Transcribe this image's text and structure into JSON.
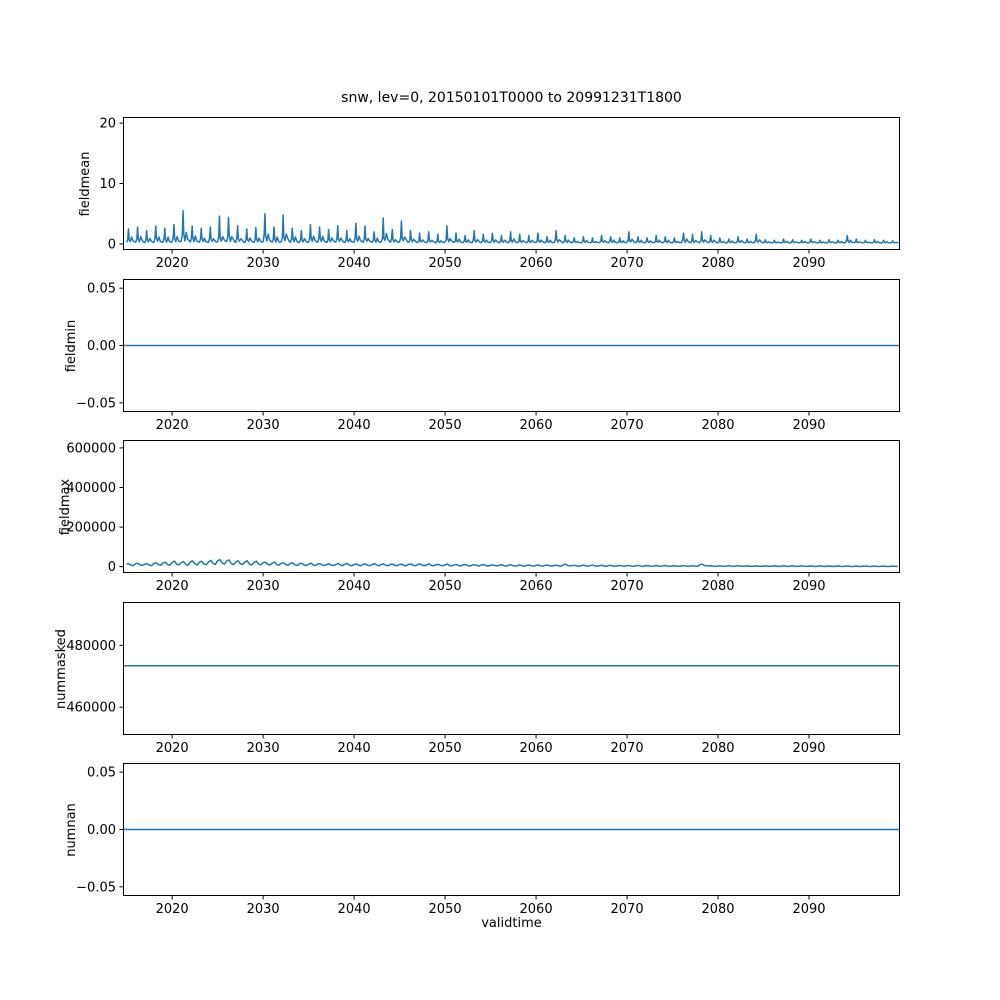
{
  "title": "snw, lev=0, 20150101T0000 to 20991231T1800",
  "xlabel": "validtime",
  "line_color": "#1f77b4",
  "x_axis": {
    "xlim": [
      2014.6,
      2100
    ],
    "ticks": [
      2020,
      2030,
      2040,
      2050,
      2060,
      2070,
      2080,
      2090
    ]
  },
  "chart_data": [
    {
      "type": "line",
      "name": "fieldmean",
      "ylabel": "fieldmean",
      "ylim": [
        -1,
        21
      ],
      "ytick_values": [
        0,
        10,
        20
      ],
      "ytick_labels": [
        "0",
        "10",
        "20"
      ],
      "series": {
        "kind": "spiky",
        "baseline": 0.15,
        "year_start": 2015,
        "annual_peaks": [
          2.5,
          2.8,
          2.2,
          3.0,
          2.6,
          3.2,
          5.5,
          3.0,
          2.6,
          2.8,
          4.6,
          4.4,
          3.0,
          2.5,
          2.7,
          5.0,
          2.8,
          4.8,
          2.6,
          2.2,
          3.2,
          2.8,
          2.4,
          3.0,
          2.2,
          3.4,
          3.0,
          2.0,
          4.3,
          2.4,
          3.8,
          2.2,
          1.8,
          2.0,
          1.6,
          3.0,
          1.8,
          1.4,
          2.2,
          1.6,
          1.8,
          1.4,
          2.0,
          1.6,
          1.4,
          1.8,
          1.2,
          2.2,
          1.4,
          1.0,
          1.2,
          1.0,
          1.4,
          1.2,
          1.0,
          2.0,
          1.2,
          1.0,
          1.4,
          1.2,
          1.0,
          1.8,
          1.6,
          2.0,
          1.4,
          1.0,
          0.8,
          1.2,
          0.8,
          1.6,
          0.7,
          0.6,
          0.8,
          0.7,
          0.6,
          0.8,
          0.6,
          0.7,
          0.6,
          1.4,
          0.8,
          0.6,
          0.7,
          0.6,
          0.5
        ]
      }
    },
    {
      "type": "line",
      "name": "fieldmin",
      "ylabel": "fieldmin",
      "ylim": [
        -0.058,
        0.058
      ],
      "ytick_values": [
        -0.05,
        0.0,
        0.05
      ],
      "ytick_labels": [
        "−0.05",
        "0.00",
        "0.05"
      ],
      "series": {
        "kind": "constant",
        "value": 0
      }
    },
    {
      "type": "line",
      "name": "fieldmax",
      "ylabel": "fieldmax",
      "ylim": [
        -32000,
        640000
      ],
      "ytick_values": [
        0,
        200000,
        400000,
        600000
      ],
      "ytick_labels": [
        "0",
        "200000",
        "400000",
        "600000"
      ],
      "series": {
        "kind": "seasonal",
        "year_start": 2015,
        "annual_values": [
          15000,
          18000,
          16000,
          20000,
          22000,
          26000,
          24000,
          27000,
          30000,
          32000,
          35000,
          33000,
          30000,
          28000,
          26000,
          24000,
          22000,
          20000,
          19000,
          18000,
          17000,
          16000,
          15500,
          15000,
          14500,
          14000,
          14500,
          15000,
          14000,
          13500,
          13000,
          13500,
          14000,
          13000,
          12500,
          12000,
          11500,
          11000,
          10500,
          10000,
          9500,
          9000,
          8700,
          8500,
          8200,
          8000,
          7800,
          7600,
          12000,
          7200,
          7000,
          6800,
          6600,
          6400,
          6200,
          6000,
          5800,
          5600,
          5400,
          5200,
          5000,
          4900,
          4800,
          13000,
          4600,
          4500,
          4400,
          4300,
          4200,
          4100,
          4000,
          3900,
          3800,
          3700,
          3600,
          3500,
          3400,
          3300,
          3200,
          3100,
          3000,
          2900,
          2800,
          2700,
          2600
        ]
      }
    },
    {
      "type": "line",
      "name": "nummasked",
      "ylabel": "nummasked",
      "ylim": [
        451000,
        494000
      ],
      "ytick_values": [
        460000,
        480000
      ],
      "ytick_labels": [
        "460000",
        "480000"
      ],
      "series": {
        "kind": "constant",
        "value": 473400
      }
    },
    {
      "type": "line",
      "name": "numnan",
      "ylabel": "numnan",
      "ylim": [
        -0.058,
        0.058
      ],
      "ytick_values": [
        -0.05,
        0.0,
        0.05
      ],
      "ytick_labels": [
        "−0.05",
        "0.00",
        "0.05"
      ],
      "series": {
        "kind": "constant",
        "value": 0
      }
    }
  ]
}
